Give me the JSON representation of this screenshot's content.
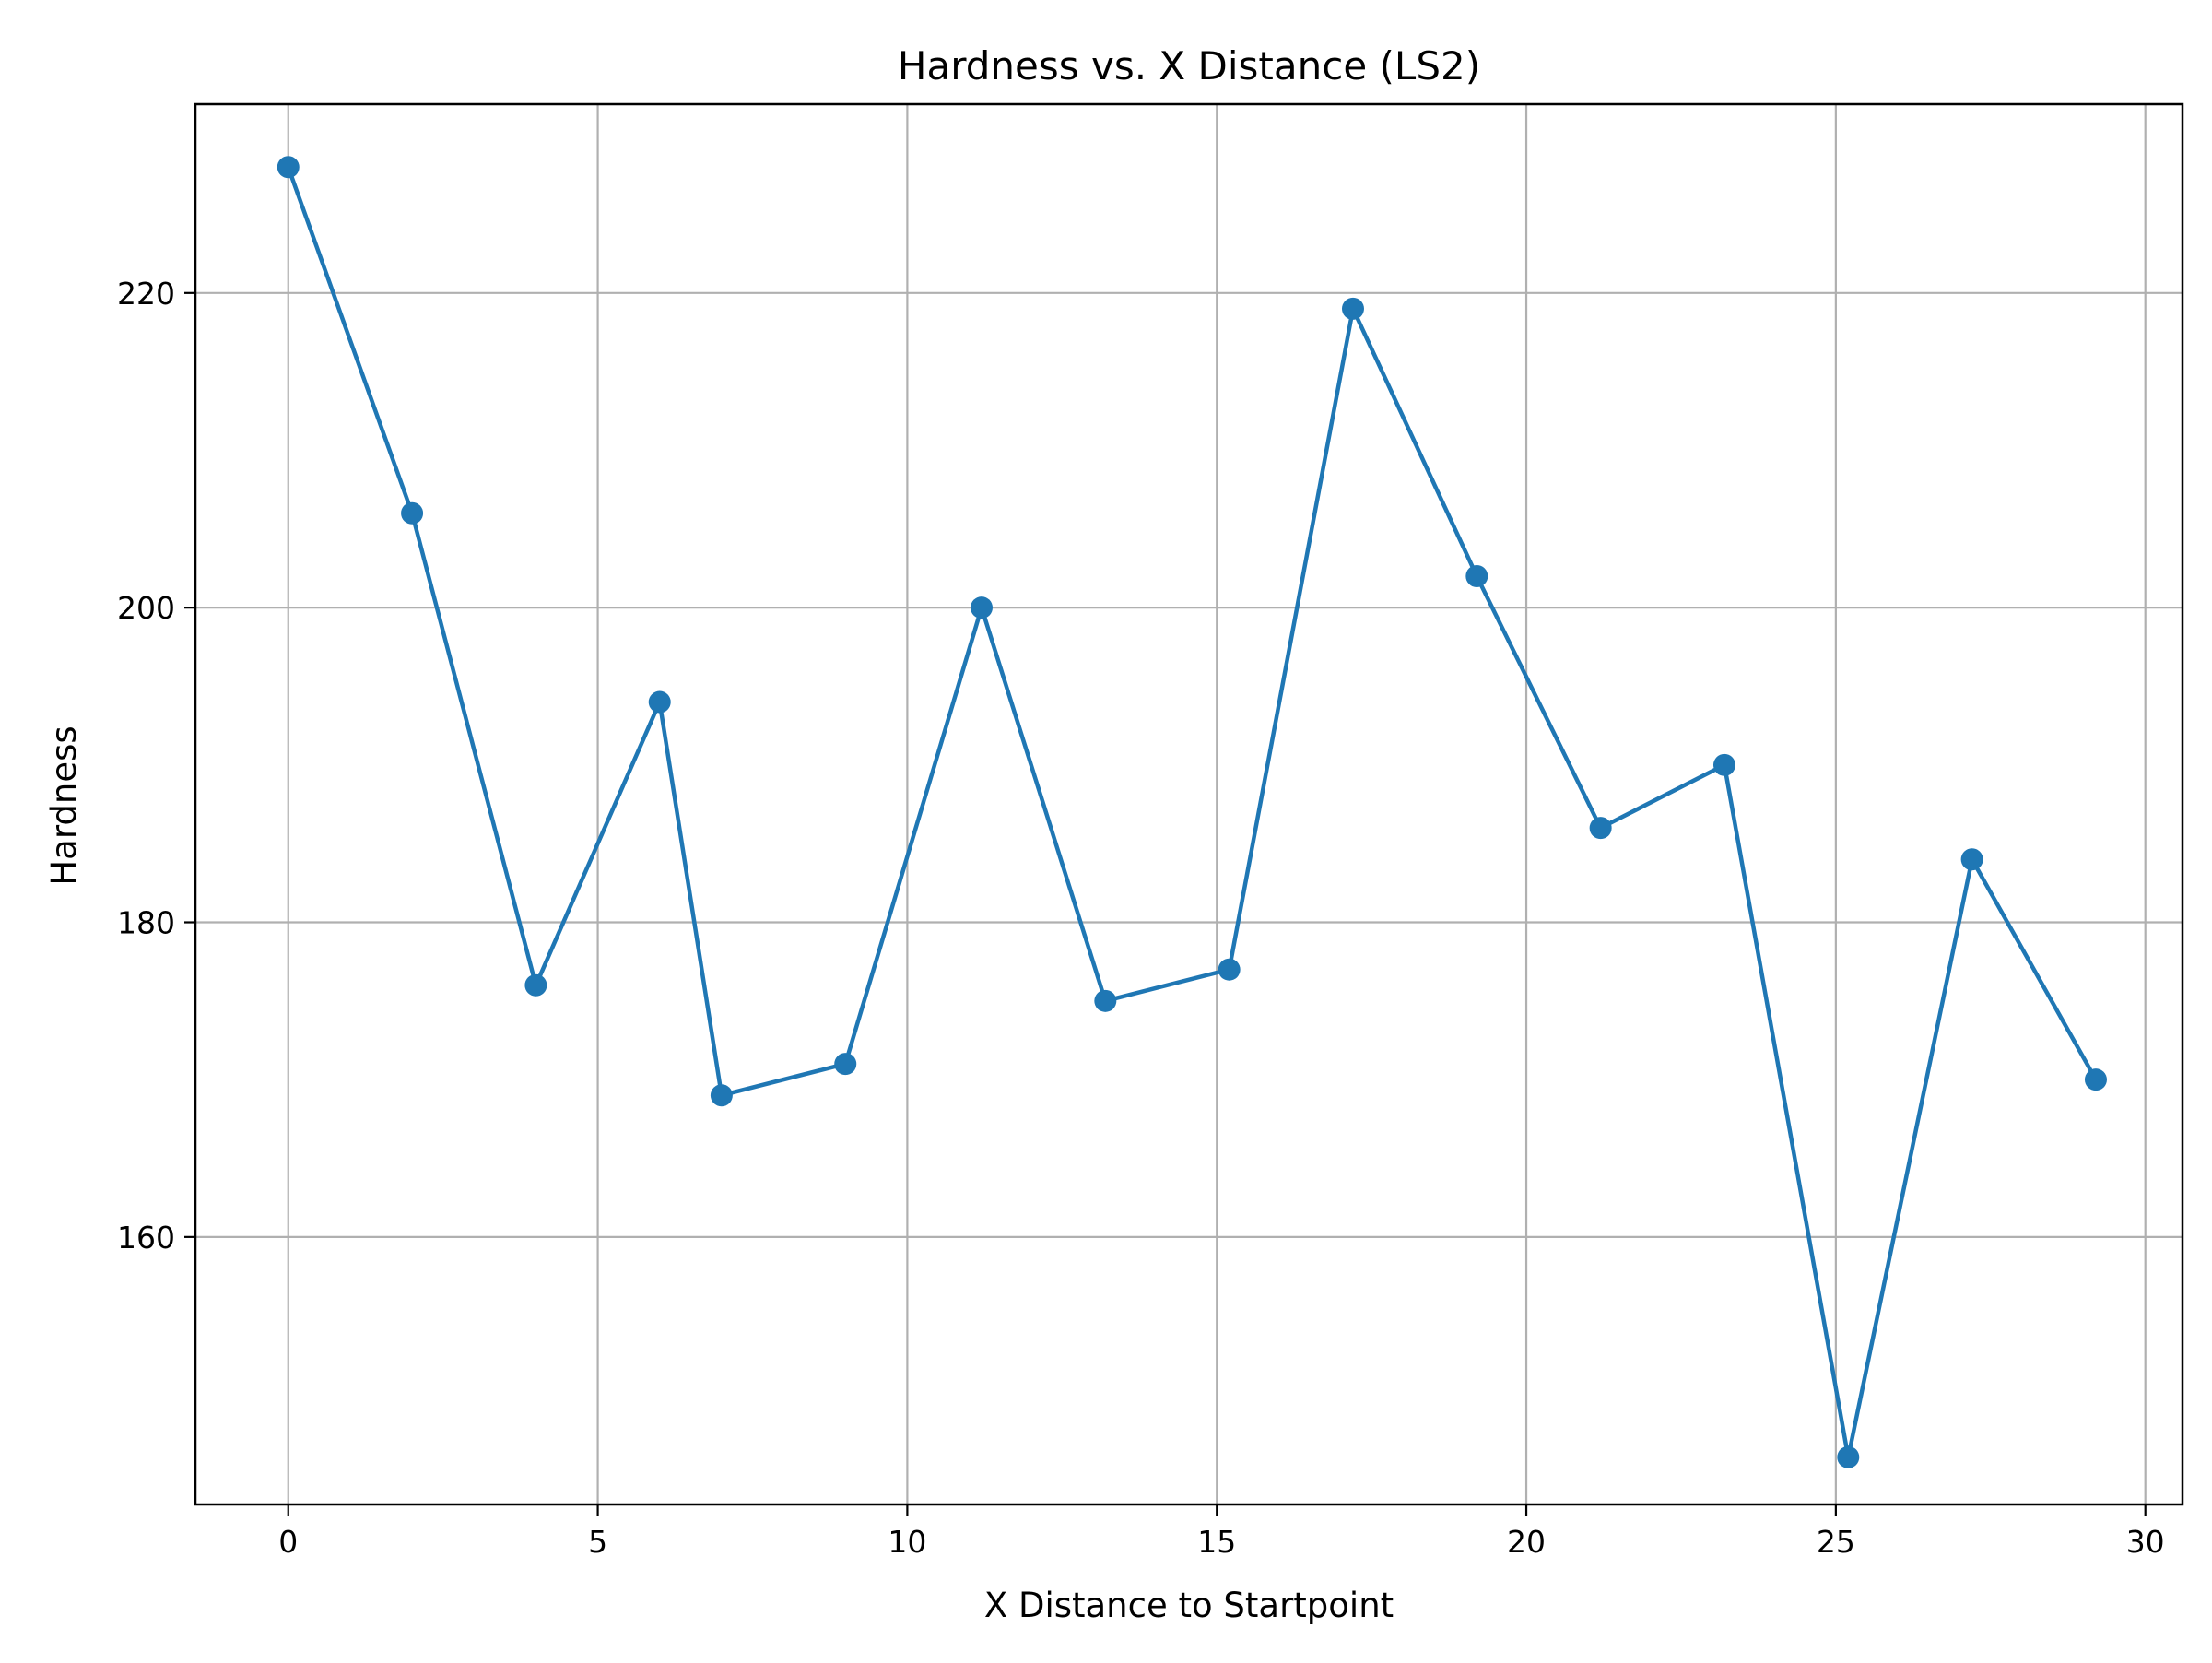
{
  "chart_data": {
    "type": "line",
    "title": "Hardness vs. X Distance (LS2)",
    "xlabel": "X Distance to Startpoint",
    "ylabel": "Hardness",
    "xlim": [
      -1.5,
      30.6
    ],
    "ylim": [
      143,
      232
    ],
    "xticks": [
      0,
      5,
      10,
      15,
      20,
      25,
      30
    ],
    "yticks": [
      160,
      180,
      200,
      220
    ],
    "grid": true,
    "colors": {
      "series": "#1f77b4",
      "grid": "#b0b0b0",
      "axes": "#000000"
    },
    "series": [
      {
        "x": [
          0,
          2,
          4,
          6,
          7,
          9,
          11.2,
          13.2,
          15.2,
          17.2,
          19.2,
          21.2,
          23.2,
          25.2,
          27.2,
          29.2
        ],
        "y": [
          228,
          206,
          176,
          194,
          169,
          171,
          200,
          175,
          177,
          219,
          202,
          186,
          190,
          146,
          184,
          170
        ]
      }
    ]
  }
}
